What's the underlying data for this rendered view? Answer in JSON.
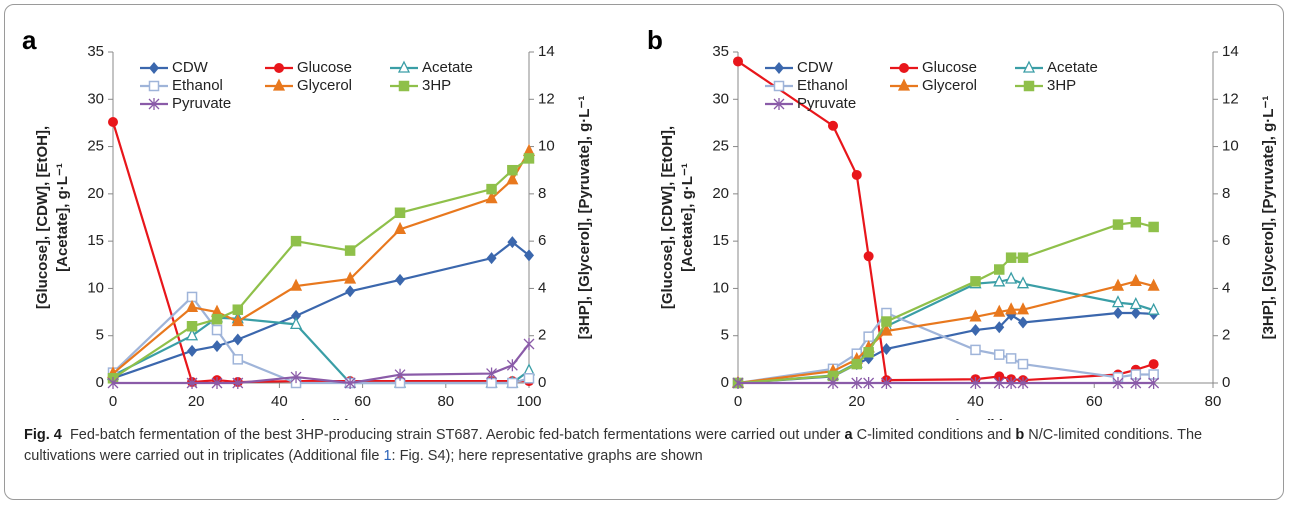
{
  "chart_data": [
    {
      "type": "line",
      "panel": "a",
      "xlabel": "Time (h)",
      "ylabel": [
        "[Glucose], [CDW], [EtOH],",
        "[Acetate], g·L⁻¹"
      ],
      "y2label": "[3HP], [Glycerol], [Pyruvate], g·L⁻¹",
      "x": [
        0,
        19,
        25,
        30,
        44,
        57,
        69,
        91,
        96,
        100
      ],
      "xlim": [
        0,
        100
      ],
      "xticks": [
        0,
        20,
        40,
        60,
        80,
        100
      ],
      "ylim": [
        0,
        35
      ],
      "yticks": [
        0,
        5,
        10,
        15,
        20,
        25,
        30,
        35
      ],
      "y2lim": [
        0,
        14
      ],
      "y2ticks": [
        0,
        2,
        4,
        6,
        8,
        10,
        12,
        14
      ],
      "series": [
        {
          "name": "CDW",
          "color": "#3b67ad",
          "marker": "diamond",
          "values": [
            0.5,
            3.4,
            3.9,
            4.6,
            7.1,
            9.7,
            10.9,
            13.2,
            14.9,
            13.5
          ]
        },
        {
          "name": "Glucose",
          "color": "#e8161b",
          "marker": "circle",
          "values": [
            27.6,
            0.1,
            0.3,
            0.1,
            0.2,
            0.2,
            0.2,
            0.2,
            0.2,
            0.2
          ]
        },
        {
          "name": "Acetate",
          "color": "#3a9ea6",
          "marker": "open-triangle",
          "values": [
            0.8,
            5.0,
            6.9,
            6.8,
            6.2,
            0,
            0,
            0,
            0,
            1.3
          ]
        },
        {
          "name": "Ethanol",
          "color": "#9fb4d9",
          "marker": "open-square",
          "values": [
            1.1,
            9.1,
            5.6,
            2.5,
            0,
            0,
            0,
            0,
            0,
            0.5
          ]
        },
        {
          "name": "Glycerol",
          "color": "#e8781e",
          "marker": "triangle",
          "axis": "y2",
          "values": [
            0.4,
            3.2,
            3.0,
            2.6,
            4.1,
            4.4,
            6.5,
            7.8,
            8.6,
            9.8
          ]
        },
        {
          "name": "3HP",
          "color": "#8fc04a",
          "marker": "square",
          "axis": "y2",
          "values": [
            0.2,
            2.4,
            2.7,
            3.1,
            6.0,
            5.6,
            7.2,
            8.2,
            9.0,
            9.5
          ]
        },
        {
          "name": "Pyruvate",
          "color": "#8a5ba8",
          "marker": "star",
          "axis": "y2",
          "values": [
            0,
            0,
            0,
            0,
            0.25,
            0,
            0.35,
            0.4,
            0.75,
            1.65
          ]
        }
      ]
    },
    {
      "type": "line",
      "panel": "b",
      "xlabel": "Time (h)",
      "ylabel": [
        "[Glucose], [CDW], [EtOH],",
        "[Acetate], g·L⁻¹"
      ],
      "y2label": "[3HP], [Glycerol], [Pyruvate], g·L⁻¹",
      "x": [
        0,
        16,
        20,
        22,
        25,
        40,
        44,
        46,
        48,
        64,
        67,
        70
      ],
      "xlim": [
        0,
        80
      ],
      "xticks": [
        0,
        20,
        40,
        60,
        80
      ],
      "ylim": [
        0,
        35
      ],
      "yticks": [
        0,
        5,
        10,
        15,
        20,
        25,
        30,
        35
      ],
      "y2lim": [
        0,
        14
      ],
      "y2ticks": [
        0,
        2,
        4,
        6,
        8,
        10,
        12,
        14
      ],
      "series": [
        {
          "name": "CDW",
          "color": "#3b67ad",
          "marker": "diamond",
          "values": [
            0,
            0.7,
            2.0,
            2.6,
            3.6,
            5.6,
            5.9,
            7.2,
            6.4,
            7.4,
            7.4,
            7.3
          ]
        },
        {
          "name": "Glucose",
          "color": "#e8161b",
          "marker": "circle",
          "values": [
            34.0,
            27.2,
            22.0,
            13.4,
            0.3,
            0.4,
            0.7,
            0.4,
            0.3,
            0.9,
            1.4,
            2.0
          ]
        },
        {
          "name": "Acetate",
          "color": "#3a9ea6",
          "marker": "open-triangle",
          "values": [
            0,
            0.8,
            2.1,
            3.7,
            6.0,
            10.5,
            10.7,
            11.0,
            10.5,
            8.5,
            8.3,
            7.7
          ]
        },
        {
          "name": "Ethanol",
          "color": "#9fb4d9",
          "marker": "open-square",
          "values": [
            0,
            1.5,
            3.1,
            4.9,
            7.4,
            3.5,
            3.0,
            2.6,
            2.0,
            0.6,
            0.9,
            0.9
          ]
        },
        {
          "name": "Glycerol",
          "color": "#e8781e",
          "marker": "triangle",
          "axis": "y2",
          "values": [
            0,
            0.5,
            1.0,
            1.5,
            2.2,
            2.8,
            3.0,
            3.1,
            3.1,
            4.1,
            4.3,
            4.1
          ]
        },
        {
          "name": "3HP",
          "color": "#8fc04a",
          "marker": "square",
          "axis": "y2",
          "values": [
            0,
            0.3,
            0.8,
            1.3,
            2.6,
            4.3,
            4.8,
            5.3,
            5.3,
            6.7,
            6.8,
            6.6
          ]
        },
        {
          "name": "Pyruvate",
          "color": "#8a5ba8",
          "marker": "star",
          "axis": "y2",
          "values": [
            0,
            0,
            0,
            0,
            0,
            0,
            0,
            0,
            0,
            0,
            0,
            0
          ]
        }
      ]
    }
  ],
  "caption": {
    "label": "Fig. 4",
    "parts": [
      "Fed-batch fermentation of the best 3HP-producing strain ST687. Aerobic fed-batch fermentations were carried out under ",
      "a",
      " C-limited conditions and ",
      "b",
      " N/C-limited conditions. The cultivations were carried out in triplicates (Additional file ",
      "1",
      ": Fig. S4); here representative graphs are shown"
    ]
  }
}
